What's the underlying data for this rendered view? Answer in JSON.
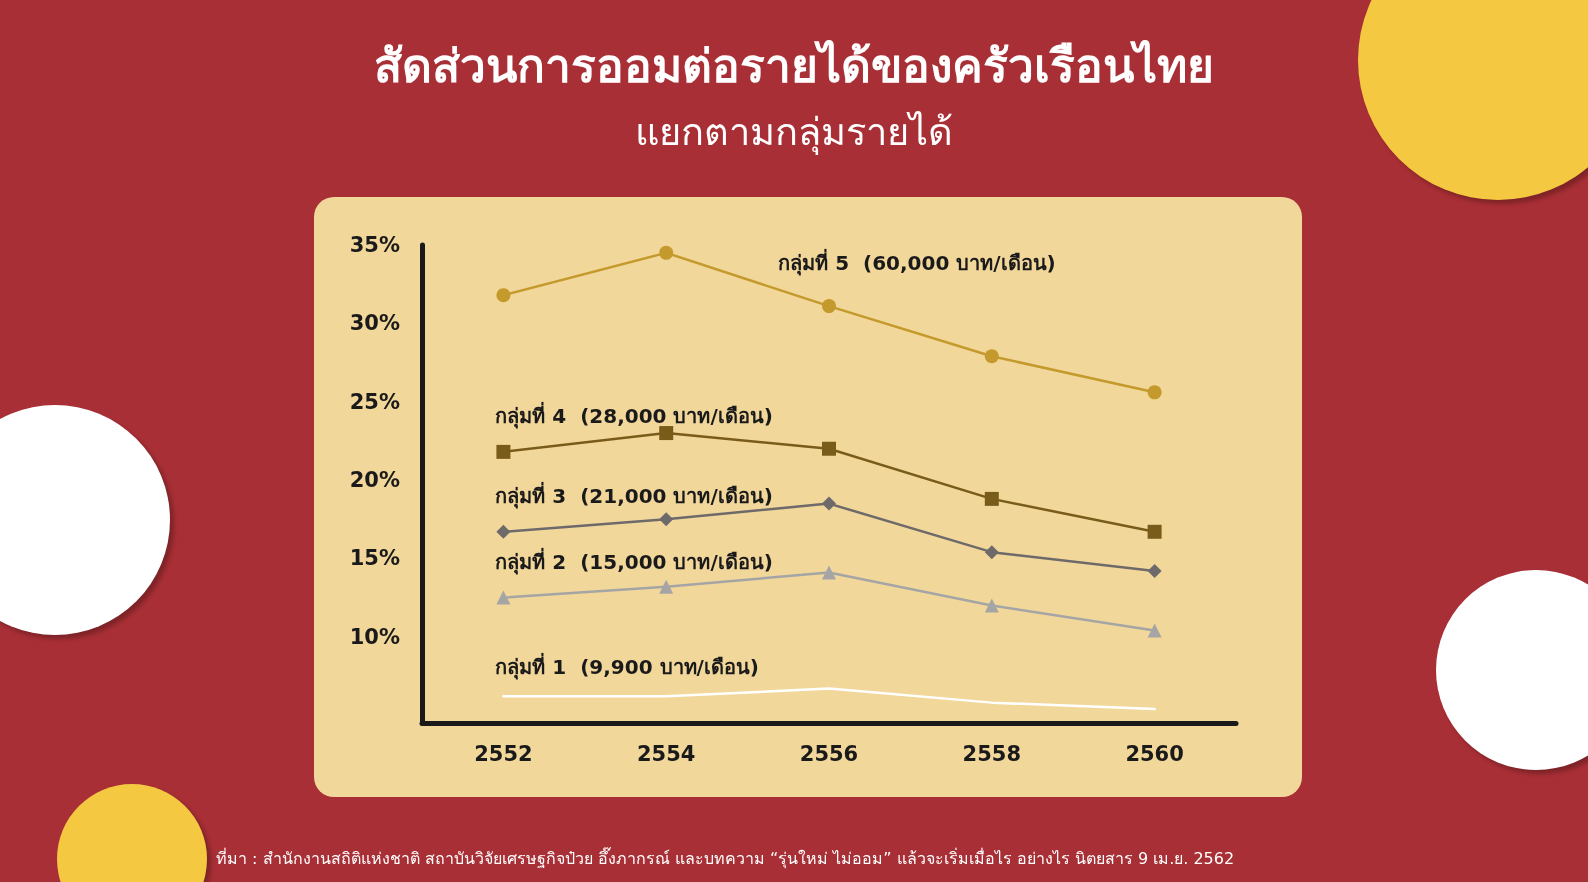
{
  "chart_data": {
    "type": "line",
    "title": "สัดส่วนการออมต่อรายได้ของครัวเรือนไทย",
    "subtitle": "แยกตามกลุ่มรายได้",
    "categories": [
      "2552",
      "2554",
      "2556",
      "2558",
      "2560"
    ],
    "series": [
      {
        "name": "กลุ่มที่ 5  (60,000 บาท/เดือน)",
        "color": "#c49a2c",
        "marker": "circle",
        "values": [
          31.8,
          34.5,
          31.1,
          27.9,
          25.6
        ]
      },
      {
        "name": "กลุ่มที่ 4  (28,000 บาท/เดือน)",
        "color": "#7a5c1a",
        "marker": "square",
        "values": [
          21.8,
          23.0,
          22.0,
          18.8,
          16.7
        ]
      },
      {
        "name": "กลุ่มที่ 3  (21,000 บาท/เดือน)",
        "color": "#6e6a6a",
        "marker": "diamond",
        "values": [
          16.7,
          17.5,
          18.5,
          15.4,
          14.2
        ]
      },
      {
        "name": "กลุ่มที่ 2  (15,000 บาท/เดือน)",
        "color": "#a5a5a5",
        "marker": "triangle",
        "values": [
          12.5,
          13.2,
          14.1,
          12.0,
          10.4
        ]
      },
      {
        "name": "กลุ่มที่ 1  (9,900 บาท/เดือน)",
        "color": "#ffffff",
        "marker": "none",
        "values": [
          6.2,
          6.2,
          6.7,
          5.8,
          5.4
        ]
      }
    ],
    "ylim": [
      4.5,
      35
    ],
    "yticks": [
      {
        "value": 10,
        "label": "10%"
      },
      {
        "value": 15,
        "label": "15%"
      },
      {
        "value": 20,
        "label": "20%"
      },
      {
        "value": 25,
        "label": "25%"
      },
      {
        "value": 30,
        "label": "30%"
      },
      {
        "value": 35,
        "label": "35%"
      }
    ],
    "grid": false,
    "legend": false,
    "annotations": [
      "ที่มา : สำนักงานสถิติแห่งชาติ สถาบันวิจัยเศรษฐกิจป๋วย อึ๊งภากรณ์ และบทความ  “รุ่นใหม่ ไม่ออม” แล้วจะเริ่มเมื่อไร อย่างไร นิตยสาร 9 เม.ย. 2562"
    ]
  }
}
